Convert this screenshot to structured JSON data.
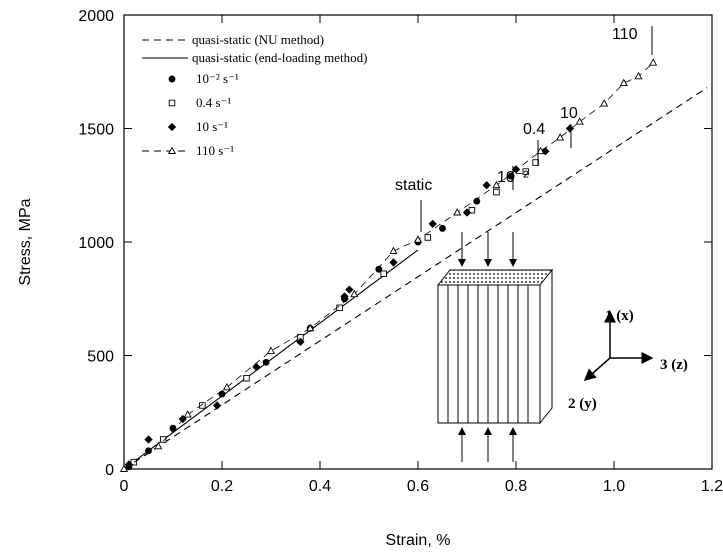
{
  "chart_data": {
    "type": "scatter",
    "x_label": "Strain, %",
    "y_label": "Stress, MPa",
    "xlim": [
      0,
      1.2
    ],
    "ylim": [
      0,
      2000
    ],
    "xticks": [
      0,
      0.2,
      0.4,
      0.6,
      0.8,
      {
        "value": 1,
        "label": "1.0"
      },
      1.2
    ],
    "yticks": [
      0,
      500,
      1000,
      1500,
      2000
    ],
    "series": [
      {
        "name": "quasi-static (NU method)",
        "color": "#000000",
        "line": "dashed",
        "marker": null,
        "x": [
          0,
          1.19
        ],
        "values": [
          0,
          1680
        ]
      },
      {
        "name": "quasi-static (end-loading method)",
        "color": "#000000",
        "line": "solid",
        "marker": null,
        "x": [
          0,
          0.6
        ],
        "values": [
          0,
          965
        ]
      },
      {
        "name": "10⁻² s⁻¹",
        "color": "#000000",
        "line": null,
        "marker": "circle",
        "x": [
          0.01,
          0.05,
          0.1,
          0.2,
          0.29,
          0.38,
          0.45,
          0.52,
          0.6,
          0.65,
          0.72,
          0.79
        ],
        "values": [
          10,
          80,
          180,
          330,
          470,
          620,
          750,
          880,
          1000,
          1060,
          1180,
          1290
        ]
      },
      {
        "name": "0.4 s⁻¹",
        "color": "#000000",
        "line": null,
        "marker": "square",
        "x": [
          0.02,
          0.08,
          0.16,
          0.25,
          0.36,
          0.44,
          0.53,
          0.62,
          0.71,
          0.76,
          0.82,
          0.84
        ],
        "values": [
          30,
          130,
          280,
          400,
          580,
          710,
          860,
          1020,
          1140,
          1220,
          1310,
          1350
        ]
      },
      {
        "name": "10 s⁻¹",
        "color": "#000000",
        "line": null,
        "marker": "diamond",
        "x": [
          0.01,
          0.05,
          0.12,
          0.19,
          0.27,
          0.36,
          0.45,
          0.46,
          0.55,
          0.63,
          0.7,
          0.74,
          0.8,
          0.86,
          0.91
        ],
        "values": [
          20,
          130,
          220,
          280,
          450,
          560,
          760,
          790,
          910,
          1080,
          1130,
          1250,
          1320,
          1400,
          1500
        ]
      },
      {
        "name": "110 s⁻¹",
        "color": "#000000",
        "line": "dashed",
        "marker": "triangle",
        "x": [
          0,
          0.07,
          0.13,
          0.21,
          0.3,
          0.38,
          0.47,
          0.55,
          0.6,
          0.68,
          0.76,
          0.85,
          0.89,
          0.93,
          0.98,
          1.02,
          1.05,
          1.08
        ],
        "values": [
          0,
          100,
          240,
          360,
          520,
          620,
          770,
          960,
          1010,
          1130,
          1250,
          1400,
          1460,
          1530,
          1610,
          1700,
          1730,
          1790
        ]
      }
    ],
    "annotations": [
      "static",
      "10⁻²",
      "0.4",
      "10",
      "110"
    ],
    "legend": "upper left"
  },
  "inset": {
    "labels": [
      "1 (x)",
      "3 (z)",
      "2 (y)"
    ]
  }
}
